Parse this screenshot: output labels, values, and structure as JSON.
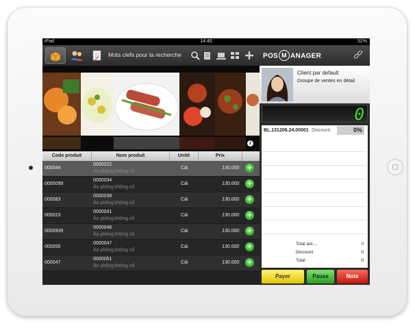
{
  "status": {
    "carrier": "iPad",
    "time": "14:46",
    "battery": "52%"
  },
  "toolbar": {
    "search_placeholder": "Mots clefs pour la recherche"
  },
  "table": {
    "headers": [
      "Code produit",
      "Nom produit",
      "Unité",
      "Prix"
    ],
    "rows": [
      {
        "code": "000044",
        "name": "0000022",
        "sub": "Áo phông không cổ",
        "unit": "Cái",
        "price": "130.000"
      },
      {
        "code": "0000099",
        "name": "0000034",
        "sub": "Áo phông không cổ",
        "unit": "Cái",
        "price": "130.000"
      },
      {
        "code": "000083",
        "name": "0000038",
        "sub": "Áo phông không cổ",
        "unit": "Cái",
        "price": "130.000"
      },
      {
        "code": "000023",
        "name": "0000041",
        "sub": "Áo phông không cổ",
        "unit": "Cái",
        "price": "130.000"
      },
      {
        "code": "0000939",
        "name": "0000046",
        "sub": "Áo phông không cổ",
        "unit": "Cái",
        "price": "130.000"
      },
      {
        "code": "000055",
        "name": "0000047",
        "sub": "Áo phông không cổ",
        "unit": "Cái",
        "price": "130.000"
      },
      {
        "code": "000047",
        "name": "0000051",
        "sub": "Áo phông không cổ",
        "unit": "Cái",
        "price": "130.000"
      }
    ]
  },
  "brand": {
    "left": "POS",
    "mid": "M",
    "right": "ANAGER"
  },
  "client": {
    "name": "Client par default",
    "group": "Groupe de ventes en détail"
  },
  "counter": "0",
  "ticket": {
    "bill": "BL.131206.24.00001",
    "discount_label": "Discount",
    "discount_pct": "0%"
  },
  "totals": [
    {
      "label": "Total avt....",
      "value": "0"
    },
    {
      "label": "Discount",
      "value": "0"
    },
    {
      "label": "Total",
      "value": "0"
    }
  ],
  "actions": {
    "pay": "Payer",
    "pause": "Pause",
    "note": "Note"
  },
  "colors": {
    "accent_green": "#3ddc2d",
    "pay": "#f0d21a",
    "pause": "#3aab2a",
    "note": "#d4231a"
  }
}
